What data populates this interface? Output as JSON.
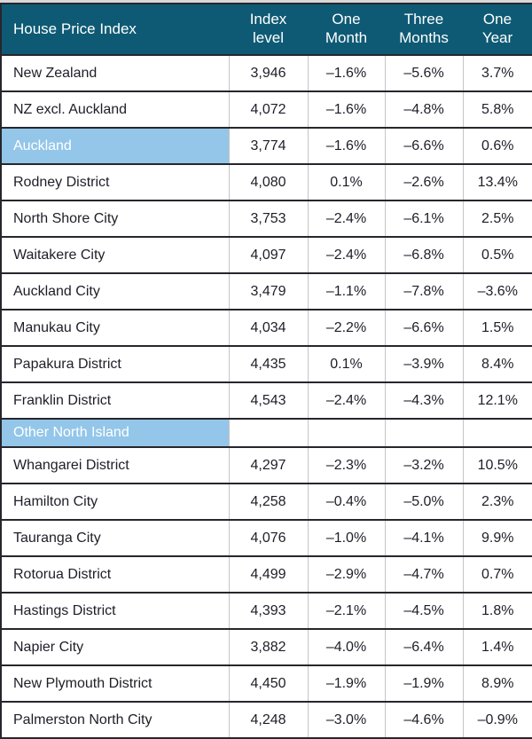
{
  "chart_data": {
    "type": "table",
    "title": "House Price Index",
    "column_headers": [
      "Index\nlevel",
      "One\nMonth",
      "Three\nMonths",
      "One\nYear"
    ],
    "section_rows": [
      "Auckland",
      "Other North Island"
    ],
    "rows": [
      {
        "label": "New Zealand",
        "section": false,
        "cells": [
          "3,946",
          "–1.6%",
          "–5.6%",
          "3.7%"
        ]
      },
      {
        "label": "NZ excl. Auckland",
        "section": false,
        "cells": [
          "4,072",
          "–1.6%",
          "–4.8%",
          "5.8%"
        ]
      },
      {
        "label": "Auckland",
        "section": true,
        "cells": [
          "3,774",
          "–1.6%",
          "–6.6%",
          "0.6%"
        ]
      },
      {
        "label": "Rodney District",
        "section": false,
        "cells": [
          "4,080",
          "0.1%",
          "–2.6%",
          "13.4%"
        ]
      },
      {
        "label": "North Shore City",
        "section": false,
        "cells": [
          "3,753",
          "–2.4%",
          "–6.1%",
          "2.5%"
        ]
      },
      {
        "label": "Waitakere City",
        "section": false,
        "cells": [
          "4,097",
          "–2.4%",
          "–6.8%",
          "0.5%"
        ]
      },
      {
        "label": "Auckland City",
        "section": false,
        "cells": [
          "3,479",
          "–1.1%",
          "–7.8%",
          "–3.6%"
        ]
      },
      {
        "label": "Manukau City",
        "section": false,
        "cells": [
          "4,034",
          "–2.2%",
          "–6.6%",
          "1.5%"
        ]
      },
      {
        "label": "Papakura District",
        "section": false,
        "cells": [
          "4,435",
          "0.1%",
          "–3.9%",
          "8.4%"
        ]
      },
      {
        "label": "Franklin District",
        "section": false,
        "cells": [
          "4,543",
          "–2.4%",
          "–4.3%",
          "12.1%"
        ]
      },
      {
        "label": "Other North Island",
        "section": true,
        "cells": [
          "",
          "",
          "",
          ""
        ]
      },
      {
        "label": "Whangarei District",
        "section": false,
        "cells": [
          "4,297",
          "–2.3%",
          "–3.2%",
          "10.5%"
        ]
      },
      {
        "label": "Hamilton City",
        "section": false,
        "cells": [
          "4,258",
          "–0.4%",
          "–5.0%",
          "2.3%"
        ]
      },
      {
        "label": "Tauranga City",
        "section": false,
        "cells": [
          "4,076",
          "–1.0%",
          "–4.1%",
          "9.9%"
        ]
      },
      {
        "label": "Rotorua District",
        "section": false,
        "cells": [
          "4,499",
          "–2.9%",
          "–4.7%",
          "0.7%"
        ]
      },
      {
        "label": "Hastings District",
        "section": false,
        "cells": [
          "4,393",
          "–2.1%",
          "–4.5%",
          "1.8%"
        ]
      },
      {
        "label": "Napier City",
        "section": false,
        "cells": [
          "3,882",
          "–4.0%",
          "–6.4%",
          "1.4%"
        ]
      },
      {
        "label": "New Plymouth District",
        "section": false,
        "cells": [
          "4,450",
          "–1.9%",
          "–1.9%",
          "8.9%"
        ]
      },
      {
        "label": "Palmerston North City",
        "section": false,
        "cells": [
          "4,248",
          "–3.0%",
          "–4.6%",
          "–0.9%"
        ]
      }
    ]
  },
  "colors": {
    "header_bg": "#0e5a74",
    "header_text": "#ffffff",
    "section_bg": "#93c6e9",
    "section_text": "#ffffff",
    "body_text": "#1e1e28",
    "row_border": "#26262c",
    "column_divider": "#c5c5c5",
    "top_strip": "#d8d8d8"
  }
}
